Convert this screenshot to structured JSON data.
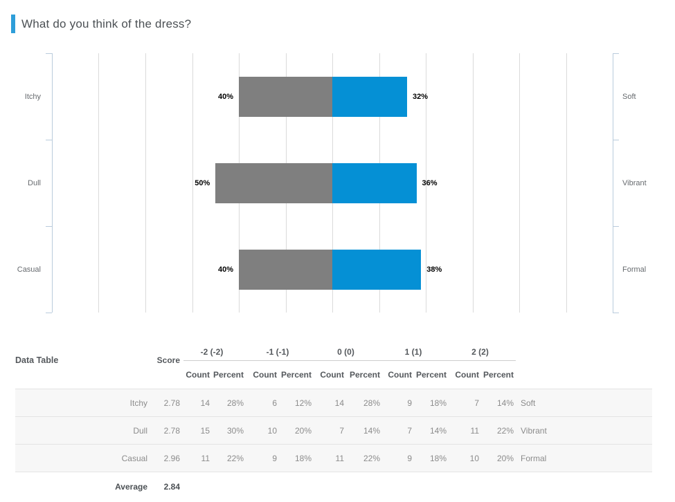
{
  "accent_color": "#2e9ed9",
  "header": {
    "title": "What do you think of the dress?"
  },
  "chart_data": {
    "type": "diverging-bar",
    "title": "What do you think of the dress?",
    "negative_color": "#7f7f7f",
    "positive_color": "#0590d5",
    "axis": {
      "min_pct": -120,
      "max_pct": 120,
      "grid_step_pct": 20,
      "gridlines": true
    },
    "value_label_suffix": "%",
    "series": [
      {
        "left_label": "Itchy",
        "right_label": "Soft",
        "negative_pct": 40,
        "positive_pct": 32
      },
      {
        "left_label": "Dull",
        "right_label": "Vibrant",
        "negative_pct": 50,
        "positive_pct": 36
      },
      {
        "left_label": "Casual",
        "right_label": "Formal",
        "negative_pct": 40,
        "positive_pct": 38
      }
    ]
  },
  "table": {
    "title": "Data Table",
    "score_header": "Score",
    "group_headers": [
      "-2 (-2)",
      "-1 (-1)",
      "0 (0)",
      "1 (1)",
      "2 (2)"
    ],
    "sub_headers": [
      "Count",
      "Percent"
    ],
    "rows": [
      {
        "label": "Itchy",
        "score": "2.78",
        "cells": [
          "14",
          "28%",
          "6",
          "12%",
          "14",
          "28%",
          "9",
          "18%",
          "7",
          "14%"
        ],
        "right_label": "Soft"
      },
      {
        "label": "Dull",
        "score": "2.78",
        "cells": [
          "15",
          "30%",
          "10",
          "20%",
          "7",
          "14%",
          "7",
          "14%",
          "11",
          "22%"
        ],
        "right_label": "Vibrant"
      },
      {
        "label": "Casual",
        "score": "2.96",
        "cells": [
          "11",
          "22%",
          "9",
          "18%",
          "11",
          "22%",
          "9",
          "18%",
          "10",
          "20%"
        ],
        "right_label": "Formal"
      }
    ],
    "average": {
      "label": "Average",
      "value": "2.84"
    }
  }
}
